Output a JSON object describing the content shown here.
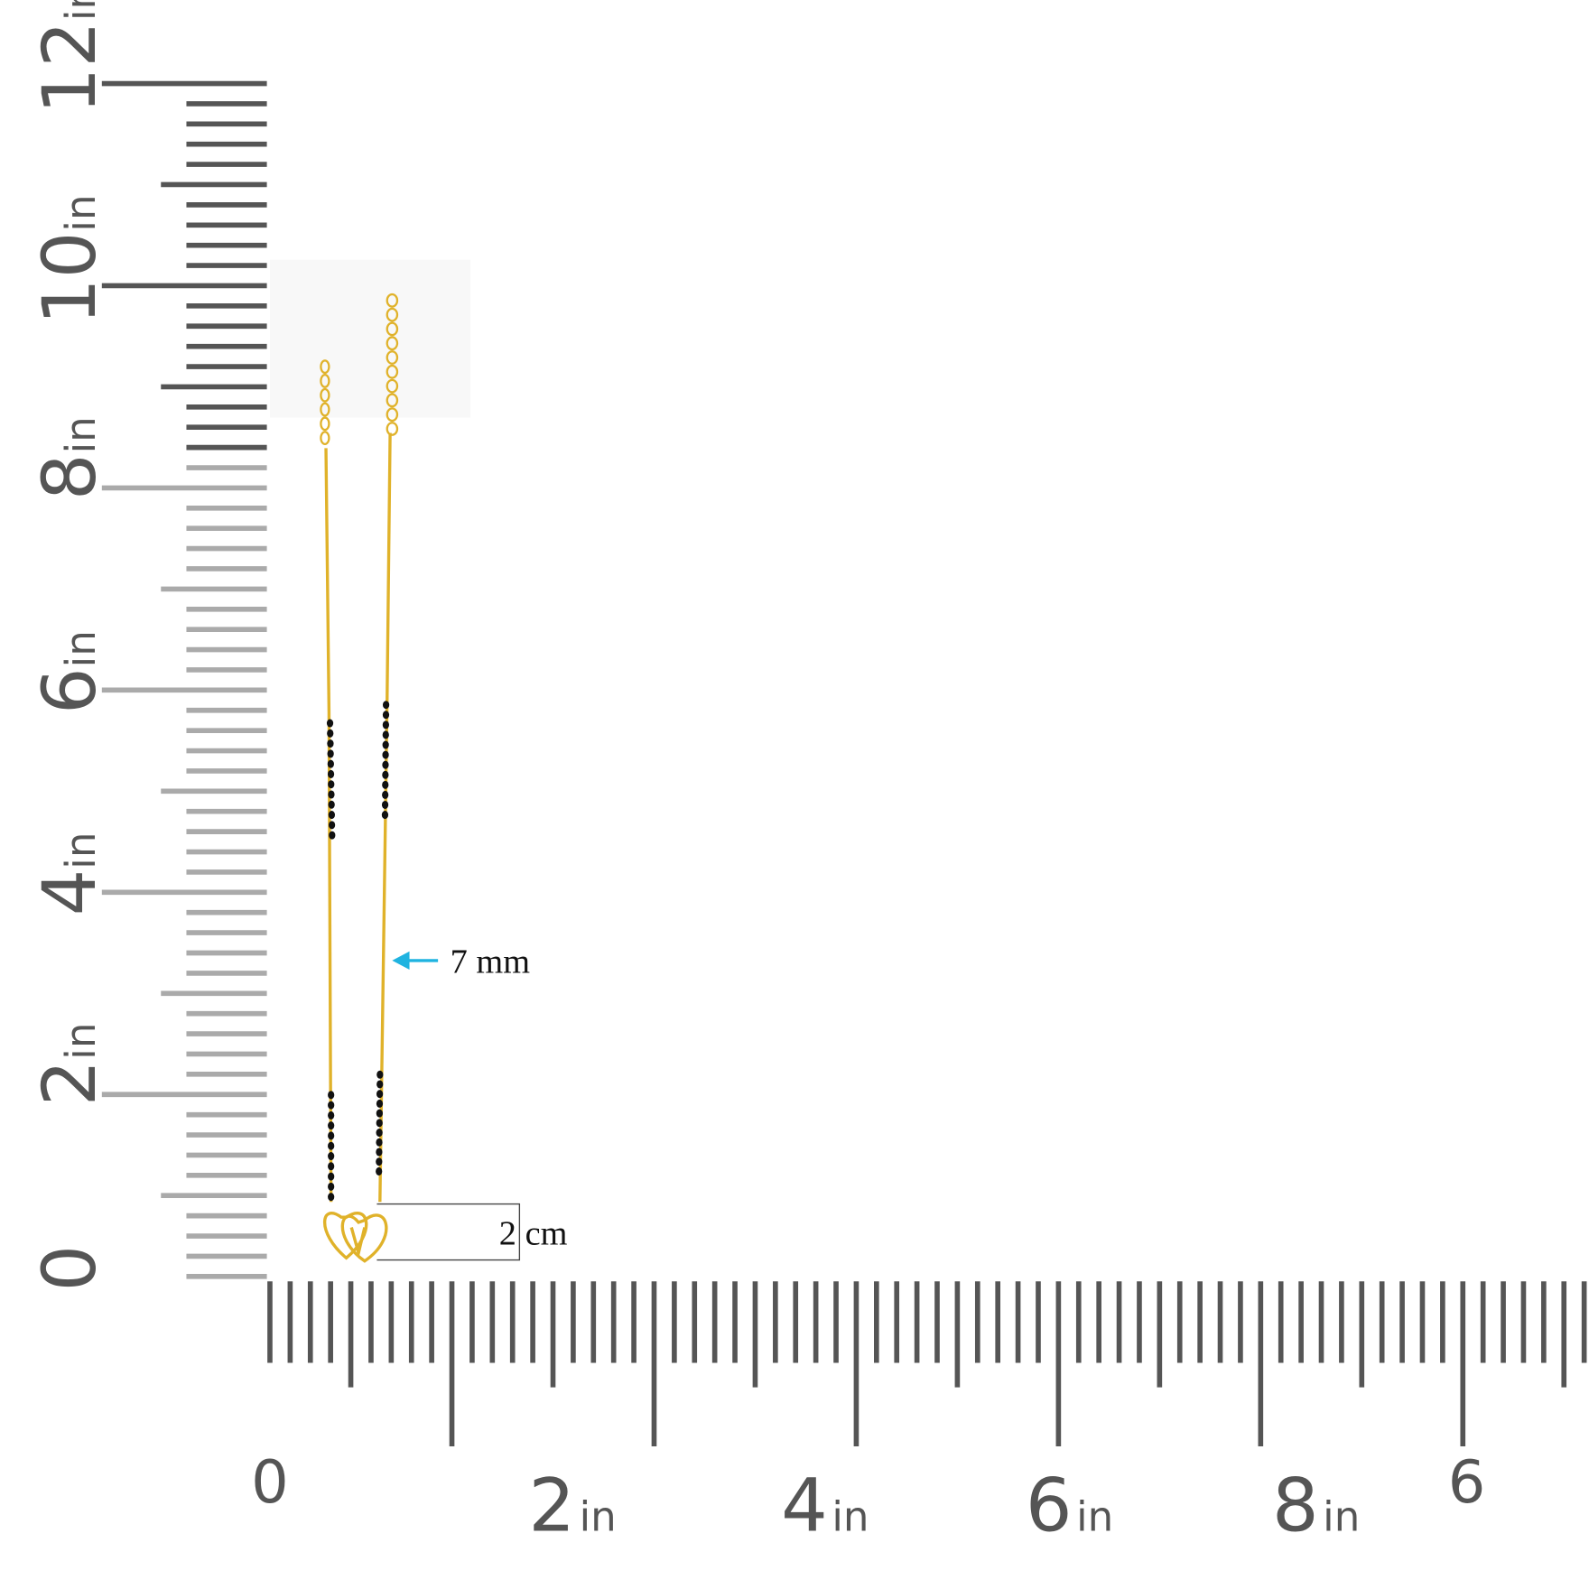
{
  "vertical_ruler": {
    "labels": [
      {
        "number": "12",
        "unit": "in"
      },
      {
        "number": "10",
        "unit": "in"
      },
      {
        "number": "8",
        "unit": "in"
      },
      {
        "number": "6",
        "unit": "in"
      },
      {
        "number": "4",
        "unit": "in"
      },
      {
        "number": "2",
        "unit": "in"
      },
      {
        "number": "0"
      }
    ]
  },
  "horizontal_ruler": {
    "labels": [
      {
        "number": "0"
      },
      {
        "number": "2",
        "unit": "in"
      },
      {
        "number": "4",
        "unit": "in"
      },
      {
        "number": "6",
        "unit": "in"
      },
      {
        "number": "8",
        "unit": "in"
      },
      {
        "number": "6"
      }
    ]
  },
  "annotations": [
    "7 mm",
    "2 cm"
  ]
}
